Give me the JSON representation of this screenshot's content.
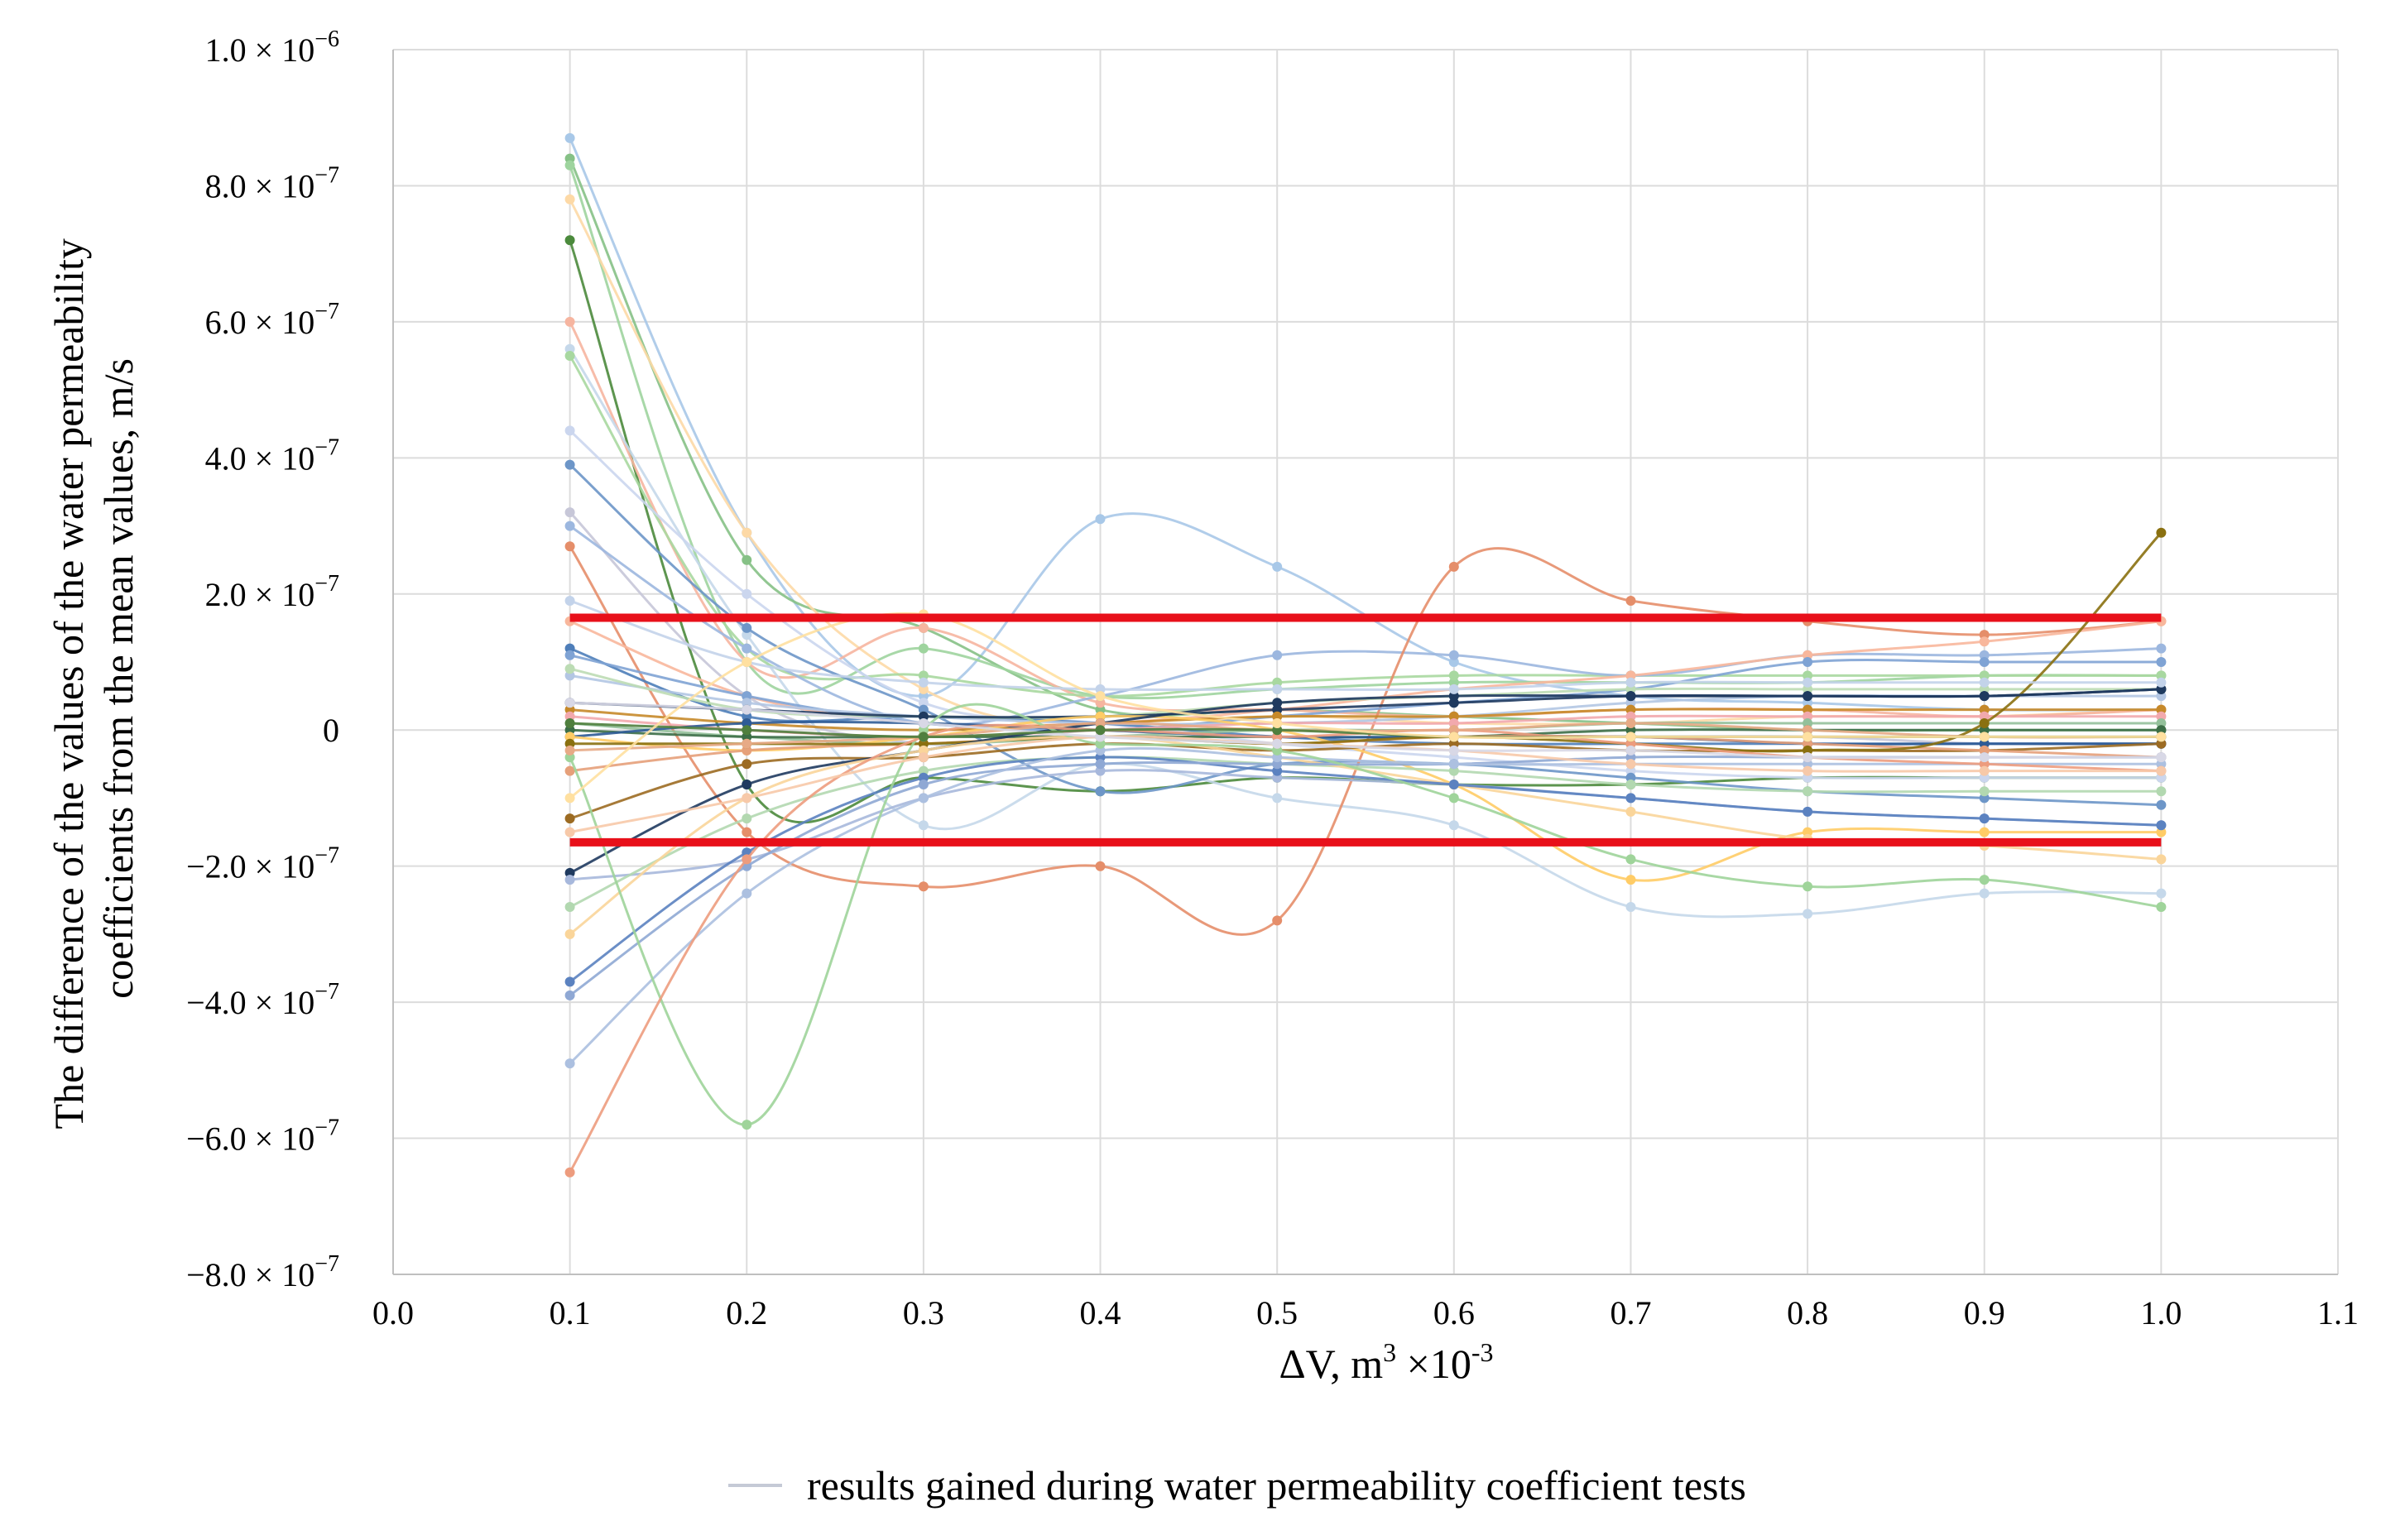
{
  "chart_data": {
    "type": "line",
    "title": "",
    "xlabel": "ΔV, m³ ×10⁻³",
    "xlabel_parts": {
      "base": "ΔV, m",
      "exp1": "3",
      "mid": " ×10",
      "exp2": "-3"
    },
    "ylabel_lines": [
      "The difference of the values of the water permeability",
      "coefficients from the mean values, m/s"
    ],
    "xlim": [
      0.0,
      1.1
    ],
    "ylim": [
      -8e-07,
      1e-06
    ],
    "x_ticks": [
      0.0,
      0.1,
      0.2,
      0.3,
      0.4,
      0.5,
      0.6,
      0.7,
      0.8,
      0.9,
      1.0,
      1.1
    ],
    "x_tick_labels": [
      "0.0",
      "0.1",
      "0.2",
      "0.3",
      "0.4",
      "0.5",
      "0.6",
      "0.7",
      "0.8",
      "0.9",
      "1.0",
      "1.1"
    ],
    "y_ticks": [
      {
        "value": 1e-06,
        "mant": "1.0 × 10",
        "exp": "−6"
      },
      {
        "value": 8e-07,
        "mant": "8.0 × 10",
        "exp": "−7"
      },
      {
        "value": 6e-07,
        "mant": "6.0 × 10",
        "exp": "−7"
      },
      {
        "value": 4e-07,
        "mant": "4.0 × 10",
        "exp": "−7"
      },
      {
        "value": 2e-07,
        "mant": "2.0 × 10",
        "exp": "−7"
      },
      {
        "value": 0,
        "mant": "0",
        "exp": ""
      },
      {
        "value": -2e-07,
        "mant": "−2.0 × 10",
        "exp": "−7"
      },
      {
        "value": -4e-07,
        "mant": "−4.0 × 10",
        "exp": "−7"
      },
      {
        "value": -6e-07,
        "mant": "−6.0 × 10",
        "exp": "−7"
      },
      {
        "value": -8e-07,
        "mant": "−8.0 × 10",
        "exp": "−7"
      }
    ],
    "grid": true,
    "legend": {
      "position": "bottom-center",
      "label": "results gained during water permeability coefficient tests",
      "color": "#c5cad6"
    },
    "x": [
      0.1,
      0.2,
      0.3,
      0.4,
      0.5,
      0.6,
      0.7,
      0.8,
      0.9,
      1.0
    ],
    "limit_lines": {
      "color": "#e8101a",
      "values": [
        1.65e-07,
        -1.65e-07
      ]
    },
    "series": [
      {
        "color": "#a8c8e8",
        "values": [
          8.7e-07,
          2.9e-07,
          5e-08,
          3.1e-07,
          2.4e-07,
          1e-07,
          5e-08,
          4e-08,
          3e-08,
          3e-08
        ]
      },
      {
        "color": "#86c186",
        "values": [
          8.4e-07,
          2.5e-07,
          1.5e-07,
          3e-08,
          3e-08,
          2e-08,
          1e-08,
          0,
          0,
          0
        ]
      },
      {
        "color": "#9ed49e",
        "values": [
          8.3e-07,
          1e-07,
          1.2e-07,
          5e-08,
          6e-08,
          7e-08,
          7e-08,
          7e-08,
          8e-08,
          8e-08
        ]
      },
      {
        "color": "#fdd9a6",
        "values": [
          7.8e-07,
          2.9e-07,
          6e-08,
          0,
          2e-08,
          1e-08,
          1e-08,
          2e-08,
          2e-08,
          3e-08
        ]
      },
      {
        "color": "#4b8a3c",
        "values": [
          7.2e-07,
          -8e-08,
          -7e-08,
          -9e-08,
          -7e-08,
          -8e-08,
          -8e-08,
          -7e-08,
          -7e-08,
          -7e-08
        ]
      },
      {
        "color": "#f6b5a0",
        "values": [
          6e-07,
          1e-07,
          1.5e-07,
          4e-08,
          3e-08,
          2e-08,
          3e-08,
          3e-08,
          2e-08,
          3e-08
        ]
      },
      {
        "color": "#c5d8ea",
        "values": [
          5.6e-07,
          1.4e-07,
          -1.4e-07,
          -5e-08,
          -1e-07,
          -1.4e-07,
          -2.6e-07,
          -2.7e-07,
          -2.4e-07,
          -2.4e-07
        ]
      },
      {
        "color": "#a8d8a0",
        "values": [
          5.5e-07,
          1.2e-07,
          8e-08,
          5e-08,
          7e-08,
          8e-08,
          8e-08,
          8e-08,
          8e-08,
          8e-08
        ]
      },
      {
        "color": "#cbd6ee",
        "values": [
          4.4e-07,
          2e-07,
          4e-08,
          1e-08,
          -2e-08,
          -4e-08,
          -6e-08,
          -7e-08,
          -7e-08,
          -7e-08
        ]
      },
      {
        "color": "#6d96c8",
        "values": [
          3.9e-07,
          1.5e-07,
          3e-08,
          -9e-08,
          -5e-08,
          -5e-08,
          -7e-08,
          -9e-08,
          -1e-07,
          -1.1e-07
        ]
      },
      {
        "color": "#c7c7d8",
        "values": [
          3.2e-07,
          5e-08,
          -2e-08,
          0,
          -1e-08,
          -1e-08,
          -1e-08,
          -1e-08,
          -2e-08,
          -2e-08
        ]
      },
      {
        "color": "#9cb7df",
        "values": [
          3e-07,
          1.2e-07,
          1e-08,
          5e-08,
          1.1e-07,
          1.1e-07,
          8e-08,
          1.1e-07,
          1.1e-07,
          1.2e-07
        ]
      },
      {
        "color": "#e58e6a",
        "values": [
          2.7e-07,
          -1.5e-07,
          -2.3e-07,
          -2e-07,
          -2.8e-07,
          2.4e-07,
          1.9e-07,
          1.6e-07,
          1.4e-07,
          1.6e-07
        ]
      },
      {
        "color": "#f8b79c",
        "values": [
          1.6e-07,
          5e-08,
          1e-08,
          1e-08,
          3e-08,
          6e-08,
          8e-08,
          1.1e-07,
          1.3e-07,
          1.6e-07
        ]
      },
      {
        "color": "#4e7eb9",
        "values": [
          1.2e-07,
          2e-08,
          2e-08,
          1e-08,
          -1e-08,
          -2e-08,
          -2e-08,
          -2e-08,
          -2e-08,
          -2e-08
        ]
      },
      {
        "color": "#7fa3d4",
        "values": [
          1.1e-07,
          5e-08,
          1e-08,
          0,
          2e-08,
          4e-08,
          6e-08,
          1e-07,
          1e-07,
          1e-07
        ]
      },
      {
        "color": "#b3c6e3",
        "values": [
          8e-08,
          4e-08,
          2e-08,
          1e-08,
          1e-08,
          2e-08,
          4e-08,
          5e-08,
          5e-08,
          5e-08
        ]
      },
      {
        "color": "#bcdcb4",
        "values": [
          9e-08,
          3e-08,
          2e-08,
          2e-08,
          4e-08,
          5e-08,
          6e-08,
          6e-08,
          6e-08,
          6e-08
        ]
      },
      {
        "color": "#1f3a5f",
        "values": [
          4e-08,
          3e-08,
          2e-08,
          2e-08,
          3e-08,
          4e-08,
          5e-08,
          5e-08,
          5e-08,
          6e-08
        ]
      },
      {
        "color": "#c6892a",
        "values": [
          3e-08,
          1e-08,
          0,
          1e-08,
          2e-08,
          2e-08,
          3e-08,
          3e-08,
          3e-08,
          3e-08
        ]
      },
      {
        "color": "#f2a9ad",
        "values": [
          2e-08,
          0,
          -1e-08,
          0,
          1e-08,
          1e-08,
          2e-08,
          2e-08,
          2e-08,
          2e-08
        ]
      },
      {
        "color": "#93c09a",
        "values": [
          1e-08,
          -1e-08,
          -2e-08,
          -1e-08,
          0,
          0,
          1e-08,
          1e-08,
          1e-08,
          1e-08
        ]
      },
      {
        "color": "#3c6e47",
        "values": [
          0,
          -1e-08,
          -1e-08,
          -1e-08,
          -1e-08,
          -1e-08,
          0,
          0,
          0,
          0
        ]
      },
      {
        "color": "#2e5b96",
        "values": [
          -1e-08,
          1e-08,
          1e-08,
          0,
          -1e-08,
          -1e-08,
          -1e-08,
          -2e-08,
          -2e-08,
          -2e-08
        ]
      },
      {
        "color": "#ffcc66",
        "values": [
          -1e-08,
          -3e-08,
          -1e-08,
          2e-08,
          0,
          -8e-08,
          -2.2e-07,
          -1.5e-07,
          -1.5e-07,
          -1.5e-07
        ]
      },
      {
        "color": "#9c6b22",
        "values": [
          -1.3e-07,
          -5e-08,
          -4e-08,
          -2e-08,
          -3e-08,
          -2e-08,
          -3e-08,
          -3e-08,
          -3e-08,
          -2e-08
        ]
      },
      {
        "color": "#e6a07a",
        "values": [
          -6e-08,
          -3e-08,
          -2e-08,
          -1e-08,
          -2e-08,
          -1e-08,
          -1e-08,
          -2e-08,
          -3e-08,
          -4e-08
        ]
      },
      {
        "color": "#8a7010",
        "values": [
          -2e-08,
          -2e-08,
          -2e-08,
          -1e-08,
          -2e-08,
          -1e-08,
          -2e-08,
          -3e-08,
          1e-08,
          2.9e-07
        ]
      },
      {
        "color": "#1f3a5f",
        "values": [
          -2.1e-07,
          -8e-08,
          -3e-08,
          1e-08,
          4e-08,
          5e-08,
          5e-08,
          5e-08,
          5e-08,
          6e-08
        ]
      },
      {
        "color": "#a7b8dc",
        "values": [
          -2.2e-07,
          -1.9e-07,
          -1e-07,
          -6e-08,
          -7e-08,
          -8e-08,
          -1e-07,
          -1.2e-07,
          -1.3e-07,
          -1.4e-07
        ]
      },
      {
        "color": "#b2d8b0",
        "values": [
          -2.6e-07,
          -1.3e-07,
          -6e-08,
          -4e-08,
          -5e-08,
          -6e-08,
          -8e-08,
          -9e-08,
          -9e-08,
          -9e-08
        ]
      },
      {
        "color": "#fad59a",
        "values": [
          -3e-07,
          -1e-07,
          -3e-08,
          -1e-08,
          -4e-08,
          -8e-08,
          -1.2e-07,
          -1.6e-07,
          -1.7e-07,
          -1.9e-07
        ]
      },
      {
        "color": "#5b82c0",
        "values": [
          -3.7e-07,
          -1.8e-07,
          -7e-08,
          -4e-08,
          -6e-08,
          -8e-08,
          -1e-07,
          -1.2e-07,
          -1.3e-07,
          -1.4e-07
        ]
      },
      {
        "color": "#8fa8d4",
        "values": [
          -3.9e-07,
          -2e-07,
          -8e-08,
          -5e-08,
          -5e-08,
          -5e-08,
          -4e-08,
          -4e-08,
          -4e-08,
          -4e-08
        ]
      },
      {
        "color": "#acc0e0",
        "values": [
          -4.9e-07,
          -2.4e-07,
          -1e-07,
          -3e-08,
          -4e-08,
          -5e-08,
          -5e-08,
          -5e-08,
          -5e-08,
          -5e-08
        ]
      },
      {
        "color": "#9fd49a",
        "values": [
          -4e-08,
          -5.8e-07,
          0,
          -2e-08,
          -3e-08,
          -1e-07,
          -1.9e-07,
          -2.3e-07,
          -2.2e-07,
          -2.6e-07
        ]
      },
      {
        "color": "#ed9c7e",
        "values": [
          -6.5e-07,
          -1.9e-07,
          -1e-08,
          0,
          -1e-08,
          0,
          -2e-08,
          -4e-08,
          -5e-08,
          -6e-08
        ]
      },
      {
        "color": "#f7c9a9",
        "values": [
          -1.5e-07,
          -1e-07,
          -4e-08,
          -1e-08,
          -2e-08,
          -3e-08,
          -5e-08,
          -6e-08,
          -6e-08,
          -6e-08
        ]
      },
      {
        "color": "#c3d3ea",
        "values": [
          1.9e-07,
          1e-07,
          7e-08,
          6e-08,
          6e-08,
          6e-08,
          7e-08,
          7e-08,
          7e-08,
          7e-08
        ]
      },
      {
        "color": "#e7aa86",
        "values": [
          -3e-08,
          -2e-08,
          -1e-08,
          1e-08,
          0,
          0,
          1e-08,
          0,
          -1e-08,
          -1e-08
        ]
      },
      {
        "color": "#d8d8e6",
        "values": [
          4e-08,
          3e-08,
          1e-08,
          -1e-08,
          -2e-08,
          -3e-08,
          -3e-08,
          -4e-08,
          -4e-08,
          -4e-08
        ]
      },
      {
        "color": "#4f7f3e",
        "values": [
          1e-08,
          0,
          -1e-08,
          0,
          0,
          -1e-08,
          -1e-08,
          -1e-08,
          -1e-08,
          -1e-08
        ]
      },
      {
        "color": "#ffe0a0",
        "values": [
          -1e-07,
          1e-07,
          1.7e-07,
          5e-08,
          1e-08,
          -1e-08,
          -1e-08,
          -1e-08,
          -1e-08,
          -1e-08
        ]
      }
    ]
  }
}
